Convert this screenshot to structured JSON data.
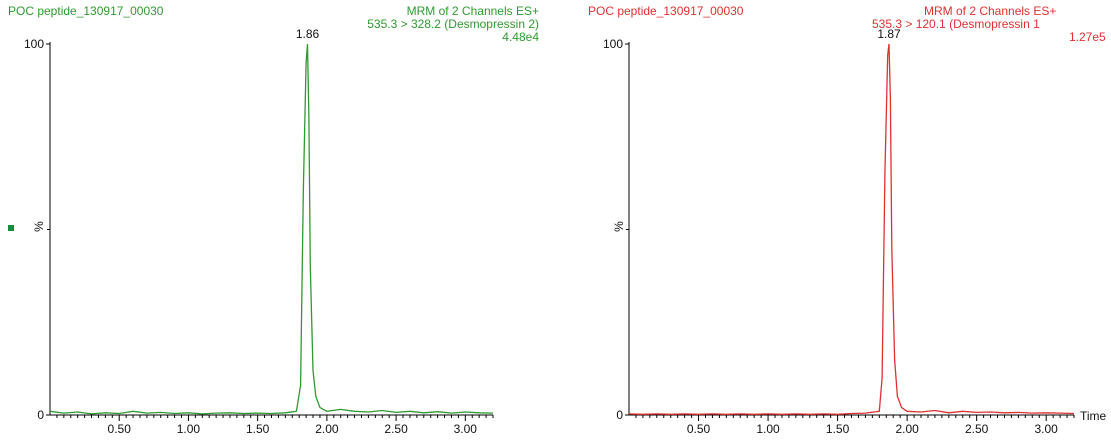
{
  "chart_data": [
    {
      "type": "line",
      "color": "#2f9a2f",
      "sample_name": "POC peptide_130917_00030",
      "header_line1": "MRM of 2 Channels ES+",
      "header_line2": "535.3 > 328.2 (Desmopressin 2)",
      "header_line3": "4.48e4",
      "ylabel": "%",
      "xlabel": "",
      "xlim": [
        0.0,
        3.2
      ],
      "ylim": [
        0,
        100
      ],
      "x_ticks": [
        "0.50",
        "1.00",
        "1.50",
        "2.00",
        "2.50",
        "3.00"
      ],
      "y_ticks": [
        "0",
        "100"
      ],
      "peak": {
        "x": 1.86,
        "label": "1.86"
      },
      "series": [
        {
          "x": [
            0.0,
            0.1,
            0.2,
            0.3,
            0.4,
            0.5,
            0.6,
            0.7,
            0.8,
            0.9,
            1.0,
            1.1,
            1.2,
            1.3,
            1.4,
            1.5,
            1.6,
            1.7,
            1.78,
            1.81,
            1.83,
            1.85,
            1.86,
            1.87,
            1.88,
            1.9,
            1.92,
            1.95,
            2.0,
            2.1,
            2.2,
            2.3,
            2.4,
            2.5,
            2.6,
            2.7,
            2.8,
            2.9,
            3.0,
            3.1,
            3.2
          ],
          "y": [
            1,
            0.5,
            0.8,
            0.3,
            0.6,
            0.4,
            1.0,
            0.5,
            0.7,
            0.4,
            0.6,
            0.3,
            0.5,
            0.6,
            0.4,
            0.5,
            0.4,
            0.6,
            1,
            8,
            60,
            95,
            100,
            80,
            40,
            12,
            5,
            2,
            1,
            1.5,
            1,
            0.8,
            1.2,
            0.7,
            1,
            0.6,
            0.9,
            0.5,
            0.8,
            0.6,
            0.5
          ]
        }
      ]
    },
    {
      "type": "line",
      "color": "#e03030",
      "sample_name": "POC peptide_130917_00030",
      "header_line1": "MRM of 2 Channels ES+",
      "header_line2": "535.3 > 120.1 (Desmopressin 1",
      "header_line3": "1.27e5",
      "ylabel": "%",
      "xlabel": "Time",
      "xlim": [
        0.0,
        3.2
      ],
      "ylim": [
        0,
        100
      ],
      "x_ticks": [
        "0.50",
        "1.00",
        "1.50",
        "2.00",
        "2.50",
        "3.00"
      ],
      "y_ticks": [
        "0",
        "100"
      ],
      "peak": {
        "x": 1.87,
        "label": "1.87"
      },
      "series": [
        {
          "x": [
            0.0,
            0.1,
            0.2,
            0.3,
            0.4,
            0.5,
            0.6,
            0.7,
            0.8,
            0.9,
            1.0,
            1.1,
            1.2,
            1.3,
            1.4,
            1.5,
            1.6,
            1.7,
            1.8,
            1.82,
            1.84,
            1.86,
            1.87,
            1.88,
            1.89,
            1.91,
            1.93,
            1.96,
            2.0,
            2.1,
            2.2,
            2.3,
            2.4,
            2.5,
            2.6,
            2.7,
            2.8,
            2.9,
            3.0,
            3.1,
            3.2
          ],
          "y": [
            0.3,
            0.2,
            0.3,
            0.2,
            0.3,
            0.2,
            0.3,
            0.2,
            0.3,
            0.2,
            0.3,
            0.2,
            0.3,
            0.2,
            0.3,
            0.2,
            0.4,
            0.5,
            1,
            10,
            65,
            97,
            100,
            85,
            45,
            15,
            5,
            2,
            1,
            0.8,
            1.2,
            0.6,
            1.0,
            0.7,
            0.8,
            0.6,
            0.7,
            0.5,
            0.6,
            0.5,
            0.4
          ]
        }
      ]
    }
  ]
}
